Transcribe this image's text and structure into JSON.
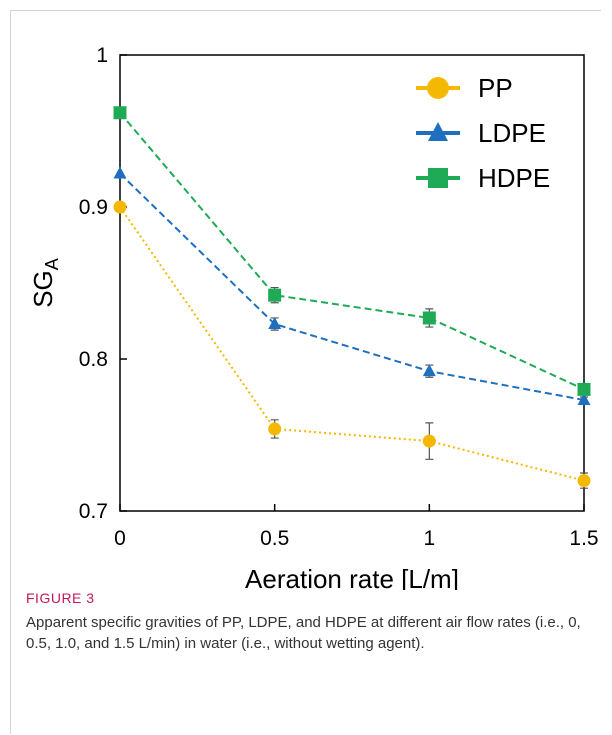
{
  "figure": {
    "label": "FIGURE 3",
    "caption": "Apparent specific gravities of PP, LDPE, and HDPE at different air flow rates (i.e., 0, 0.5, 1.0, and 1.5 L/min) in water (i.e., without wetting agent)."
  },
  "chart_data": {
    "type": "line",
    "title": "",
    "xlabel": "Aeration rate [L/m]",
    "ylabel": "SG",
    "ylabel_subscript": "A",
    "x": [
      0,
      0.5,
      1,
      1.5
    ],
    "xticks": [
      "0",
      "0.5",
      "1",
      "1.5"
    ],
    "yticks": [
      "0.7",
      "0.8",
      "0.9",
      "1"
    ],
    "xlim": [
      0,
      1.5
    ],
    "ylim": [
      0.7,
      1.0
    ],
    "grid": false,
    "legend_position": "top-right",
    "series": [
      {
        "name": "PP",
        "marker": "circle",
        "line": "dotted",
        "color": "#f5b800",
        "values": [
          0.9,
          0.754,
          0.746,
          0.72
        ],
        "errors": [
          0.0,
          0.006,
          0.012,
          0.005
        ]
      },
      {
        "name": "LDPE",
        "marker": "triangle",
        "line": "dashed",
        "color": "#1f6fc1",
        "values": [
          0.922,
          0.823,
          0.792,
          0.773
        ],
        "errors": [
          0.0,
          0.004,
          0.004,
          0.002
        ]
      },
      {
        "name": "HDPE",
        "marker": "square",
        "line": "dashed",
        "color": "#1faa55",
        "values": [
          0.962,
          0.842,
          0.827,
          0.78
        ],
        "errors": [
          0.0,
          0.005,
          0.006,
          0.003
        ]
      }
    ]
  }
}
